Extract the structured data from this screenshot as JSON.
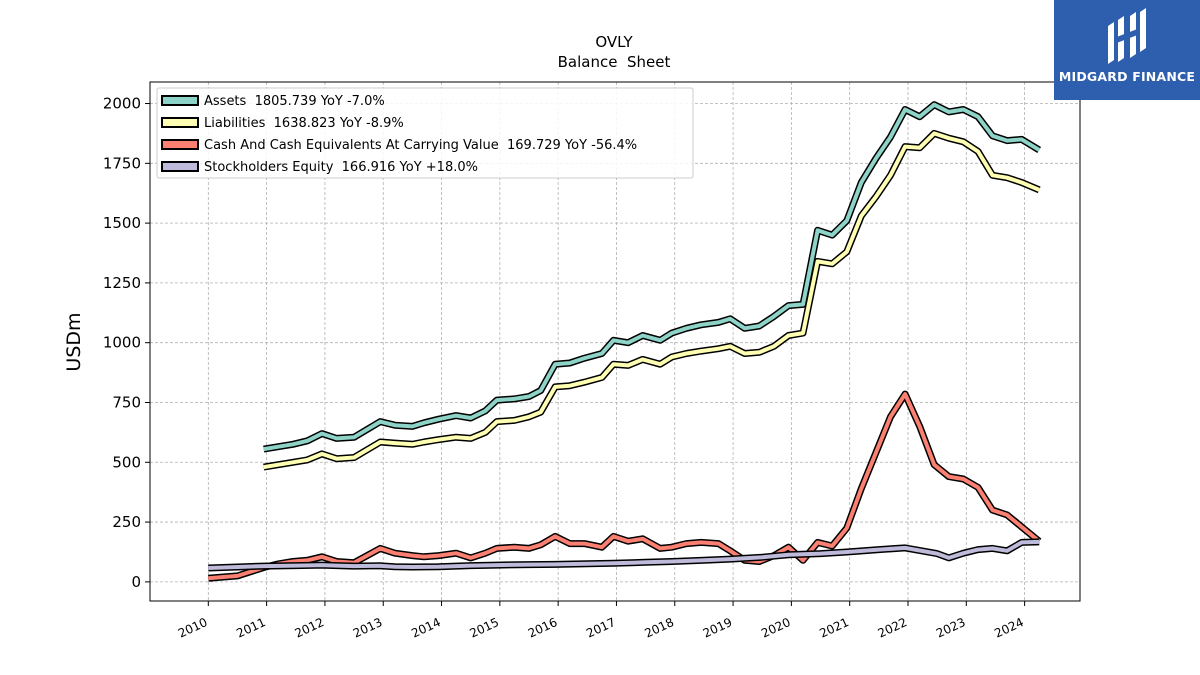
{
  "chart_data": {
    "type": "line",
    "title": "OVLY",
    "subtitle": "Balance  Sheet",
    "ylabel": "USDm",
    "xlabel": "",
    "ylim": [
      -80,
      2090
    ],
    "xlim": [
      2009.0,
      2024.95
    ],
    "yticks": [
      0,
      250,
      500,
      750,
      1000,
      1250,
      1500,
      1750,
      2000
    ],
    "xticks": [
      2010,
      2011,
      2012,
      2013,
      2014,
      2015,
      2016,
      2017,
      2018,
      2019,
      2020,
      2021,
      2022,
      2023,
      2024
    ],
    "ytick_labels": [
      "0",
      "250",
      "500",
      "750",
      "1000",
      "1250",
      "1500",
      "1750",
      "2000"
    ],
    "xtick_labels": [
      "2010",
      "2011",
      "2012",
      "2013",
      "2014",
      "2015",
      "2016",
      "2017",
      "2018",
      "2019",
      "2020",
      "2021",
      "2022",
      "2023",
      "2024"
    ],
    "grid": true,
    "legend_position": "top-left",
    "series": [
      {
        "name": "Assets  1805.739 YoY -7.0%",
        "color": "#8dd3c7",
        "x": [
          2010.95,
          2011.2,
          2011.45,
          2011.7,
          2011.95,
          2012.2,
          2012.5,
          2012.95,
          2013.2,
          2013.5,
          2013.7,
          2013.95,
          2014.25,
          2014.5,
          2014.75,
          2014.95,
          2015.25,
          2015.5,
          2015.7,
          2015.95,
          2016.2,
          2016.45,
          2016.75,
          2016.95,
          2017.2,
          2017.45,
          2017.75,
          2017.95,
          2018.2,
          2018.45,
          2018.75,
          2018.95,
          2019.2,
          2019.45,
          2019.7,
          2019.95,
          2020.2,
          2020.45,
          2020.7,
          2020.95,
          2021.2,
          2021.45,
          2021.7,
          2021.95,
          2022.2,
          2022.45,
          2022.7,
          2022.95,
          2023.2,
          2023.45,
          2023.7,
          2023.95,
          2024.25
        ],
        "values": [
          555,
          565,
          575,
          590,
          620,
          600,
          605,
          670,
          655,
          650,
          665,
          680,
          695,
          685,
          715,
          760,
          765,
          775,
          800,
          910,
          915,
          935,
          955,
          1010,
          1000,
          1030,
          1010,
          1040,
          1060,
          1075,
          1085,
          1100,
          1060,
          1070,
          1110,
          1155,
          1160,
          1470,
          1450,
          1510,
          1670,
          1770,
          1860,
          1975,
          1945,
          1995,
          1965,
          1975,
          1945,
          1865,
          1845,
          1850,
          1805.739
        ]
      },
      {
        "name": "Liabilities  1638.823 YoY -8.9%",
        "color": "#ffffb3",
        "x": [
          2010.95,
          2011.2,
          2011.45,
          2011.7,
          2011.95,
          2012.2,
          2012.5,
          2012.95,
          2013.2,
          2013.5,
          2013.7,
          2013.95,
          2014.25,
          2014.5,
          2014.75,
          2014.95,
          2015.25,
          2015.5,
          2015.7,
          2015.95,
          2016.2,
          2016.45,
          2016.75,
          2016.95,
          2017.2,
          2017.45,
          2017.75,
          2017.95,
          2018.2,
          2018.45,
          2018.75,
          2018.95,
          2019.2,
          2019.45,
          2019.7,
          2019.95,
          2020.2,
          2020.45,
          2020.7,
          2020.95,
          2021.2,
          2021.45,
          2021.7,
          2021.95,
          2022.2,
          2022.45,
          2022.7,
          2022.95,
          2023.2,
          2023.45,
          2023.7,
          2023.95,
          2024.25
        ],
        "values": [
          480,
          490,
          500,
          510,
          535,
          515,
          520,
          585,
          580,
          575,
          585,
          595,
          605,
          600,
          625,
          670,
          675,
          690,
          710,
          815,
          820,
          835,
          855,
          910,
          905,
          930,
          910,
          940,
          955,
          965,
          975,
          985,
          955,
          960,
          985,
          1030,
          1040,
          1340,
          1330,
          1380,
          1530,
          1610,
          1700,
          1820,
          1815,
          1875,
          1855,
          1840,
          1800,
          1700,
          1690,
          1670,
          1638.823
        ]
      },
      {
        "name": "Cash And Cash Equivalents At Carrying Value  169.729 YoY -56.4%",
        "color": "#fb8072",
        "x": [
          2010.0,
          2010.5,
          2010.95,
          2011.2,
          2011.45,
          2011.7,
          2011.95,
          2012.2,
          2012.5,
          2012.95,
          2013.2,
          2013.5,
          2013.7,
          2013.95,
          2014.25,
          2014.5,
          2014.75,
          2014.95,
          2015.25,
          2015.5,
          2015.7,
          2015.95,
          2016.2,
          2016.45,
          2016.75,
          2016.95,
          2017.2,
          2017.45,
          2017.75,
          2017.95,
          2018.2,
          2018.45,
          2018.75,
          2018.95,
          2019.2,
          2019.45,
          2019.7,
          2019.95,
          2020.2,
          2020.45,
          2020.7,
          2020.95,
          2021.2,
          2021.45,
          2021.7,
          2021.95,
          2022.2,
          2022.45,
          2022.7,
          2022.95,
          2023.2,
          2023.45,
          2023.7,
          2023.95,
          2024.25
        ],
        "values": [
          15,
          25,
          60,
          75,
          85,
          90,
          105,
          85,
          80,
          140,
          120,
          110,
          105,
          110,
          120,
          100,
          120,
          140,
          145,
          140,
          155,
          190,
          160,
          160,
          145,
          190,
          170,
          180,
          140,
          145,
          160,
          165,
          160,
          130,
          90,
          85,
          110,
          145,
          90,
          165,
          150,
          225,
          390,
          540,
          690,
          785,
          650,
          490,
          440,
          430,
          395,
          300,
          280,
          230,
          169.729
        ]
      },
      {
        "name": "Stockholders Equity  166.916 YoY +18.0%",
        "color": "#bebada",
        "x": [
          2010.0,
          2010.5,
          2010.95,
          2011.5,
          2011.95,
          2012.2,
          2012.5,
          2012.95,
          2013.2,
          2013.5,
          2013.95,
          2014.5,
          2014.95,
          2015.5,
          2015.95,
          2016.5,
          2016.95,
          2017.5,
          2017.95,
          2018.5,
          2018.95,
          2019.5,
          2019.95,
          2020.5,
          2020.95,
          2021.5,
          2021.95,
          2022.5,
          2022.7,
          2022.95,
          2023.2,
          2023.45,
          2023.7,
          2023.95,
          2024.25
        ],
        "values": [
          58,
          62,
          66,
          68,
          70,
          68,
          66,
          67,
          63,
          62,
          63,
          68,
          70,
          72,
          73,
          76,
          78,
          82,
          85,
          90,
          95,
          103,
          113,
          118,
          125,
          135,
          142,
          118,
          100,
          120,
          135,
          140,
          130,
          165,
          166.916
        ]
      }
    ]
  }
}
